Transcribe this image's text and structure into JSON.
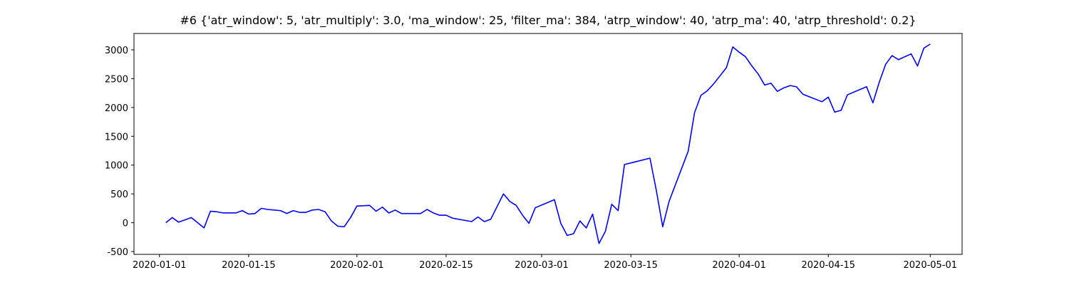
{
  "chart_data": {
    "type": "line",
    "title": "#6 {'atr_window': 5, 'atr_multiply': 3.0, 'ma_window': 25, 'filter_ma': 384, 'atrp_window': 40, 'atrp_ma': 40, 'atrp_threshold': 0.2}",
    "x": [
      "2020-01-02",
      "2020-01-03",
      "2020-01-04",
      "2020-01-06",
      "2020-01-07",
      "2020-01-08",
      "2020-01-09",
      "2020-01-10",
      "2020-01-11",
      "2020-01-13",
      "2020-01-14",
      "2020-01-15",
      "2020-01-16",
      "2020-01-17",
      "2020-01-18",
      "2020-01-20",
      "2020-01-21",
      "2020-01-22",
      "2020-01-23",
      "2020-01-24",
      "2020-01-25",
      "2020-01-26",
      "2020-01-27",
      "2020-01-28",
      "2020-01-29",
      "2020-01-30",
      "2020-01-31",
      "2020-02-01",
      "2020-02-03",
      "2020-02-04",
      "2020-02-05",
      "2020-02-06",
      "2020-02-07",
      "2020-02-08",
      "2020-02-11",
      "2020-02-12",
      "2020-02-13",
      "2020-02-14",
      "2020-02-15",
      "2020-02-16",
      "2020-02-19",
      "2020-02-20",
      "2020-02-21",
      "2020-02-22",
      "2020-02-24",
      "2020-02-25",
      "2020-02-26",
      "2020-02-27",
      "2020-02-28",
      "2020-02-29",
      "2020-03-03",
      "2020-03-04",
      "2020-03-05",
      "2020-03-06",
      "2020-03-07",
      "2020-03-08",
      "2020-03-09",
      "2020-03-10",
      "2020-03-11",
      "2020-03-12",
      "2020-03-13",
      "2020-03-14",
      "2020-03-18",
      "2020-03-19",
      "2020-03-20",
      "2020-03-21",
      "2020-03-24",
      "2020-03-25",
      "2020-03-26",
      "2020-03-27",
      "2020-03-28",
      "2020-03-30",
      "2020-03-31",
      "2020-04-01",
      "2020-04-02",
      "2020-04-03",
      "2020-04-04",
      "2020-04-05",
      "2020-04-06",
      "2020-04-07",
      "2020-04-08",
      "2020-04-09",
      "2020-04-10",
      "2020-04-11",
      "2020-04-14",
      "2020-04-15",
      "2020-04-16",
      "2020-04-17",
      "2020-04-18",
      "2020-04-21",
      "2020-04-22",
      "2020-04-23",
      "2020-04-24",
      "2020-04-25",
      "2020-04-26",
      "2020-04-28",
      "2020-04-29",
      "2020-04-30",
      "2020-05-01"
    ],
    "series": [
      {
        "color": "#0000ff",
        "values": [
          0,
          90,
          10,
          90,
          0,
          -90,
          200,
          190,
          170,
          170,
          210,
          150,
          160,
          250,
          230,
          210,
          160,
          210,
          180,
          180,
          220,
          230,
          190,
          30,
          -60,
          -70,
          90,
          290,
          300,
          200,
          270,
          170,
          220,
          160,
          160,
          230,
          170,
          130,
          130,
          80,
          20,
          100,
          20,
          60,
          500,
          370,
          300,
          130,
          -10,
          260,
          400,
          -10,
          -220,
          -190,
          30,
          -90,
          150,
          -360,
          -150,
          320,
          210,
          1010,
          1120,
          560,
          -70,
          370,
          1240,
          1910,
          2210,
          2290,
          2410,
          2690,
          3050,
          2960,
          2880,
          2720,
          2580,
          2390,
          2420,
          2280,
          2340,
          2380,
          2360,
          2230,
          2100,
          2180,
          1920,
          1950,
          2220,
          2360,
          2080,
          2440,
          2750,
          2900,
          2830,
          2930,
          2720,
          3030,
          3100
        ]
      }
    ],
    "xlim": [
      "2019-12-28",
      "2020-05-06"
    ],
    "xticks": [
      "2020-01-01",
      "2020-01-15",
      "2020-02-01",
      "2020-02-15",
      "2020-03-01",
      "2020-03-15",
      "2020-04-01",
      "2020-04-15",
      "2020-05-01"
    ],
    "ylim": [
      -549,
      3284
    ],
    "yticks": [
      -500,
      0,
      500,
      1000,
      1500,
      2000,
      2500,
      3000
    ]
  }
}
